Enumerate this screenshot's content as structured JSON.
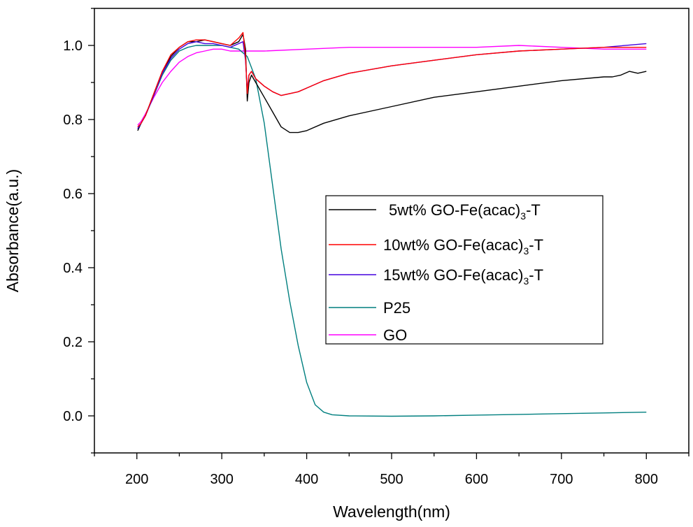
{
  "chart_data": {
    "type": "line",
    "title": "",
    "xlabel": "Wavelength(nm)",
    "ylabel": "Absorbance(a.u.)",
    "xlim": [
      150,
      850
    ],
    "ylim": [
      -0.1,
      1.1
    ],
    "x_ticks": [
      "200",
      "300",
      "400",
      "500",
      "600",
      "700",
      "800"
    ],
    "y_ticks": [
      "0.0",
      "0.2",
      "0.4",
      "0.6",
      "0.8",
      "1.0"
    ],
    "x_tick_values": [
      200,
      300,
      400,
      500,
      600,
      700,
      800
    ],
    "y_tick_values": [
      0.0,
      0.2,
      0.4,
      0.6,
      0.8,
      1.0
    ],
    "grid": false,
    "legend_position": "center-right",
    "series": [
      {
        "name": "5wt% GO-Fe(acac)3-T",
        "legend_main": "5wt% GO-Fe(acac)",
        "legend_sub": "3",
        "legend_tail": "-T",
        "color": "#000000",
        "x": [
          201,
          205,
          210,
          220,
          230,
          240,
          250,
          260,
          270,
          280,
          290,
          300,
          310,
          320,
          325,
          328,
          330,
          332,
          335,
          340,
          350,
          360,
          370,
          380,
          390,
          400,
          420,
          450,
          500,
          550,
          600,
          650,
          700,
          750,
          760,
          770,
          780,
          790,
          800
        ],
        "y": [
          0.77,
          0.79,
          0.81,
          0.87,
          0.93,
          0.97,
          0.995,
          1.01,
          1.01,
          1.015,
          1.01,
          1.005,
          1.0,
          1.01,
          1.03,
          0.99,
          0.85,
          0.9,
          0.92,
          0.9,
          0.86,
          0.82,
          0.78,
          0.765,
          0.765,
          0.77,
          0.79,
          0.81,
          0.835,
          0.86,
          0.875,
          0.89,
          0.905,
          0.915,
          0.915,
          0.92,
          0.93,
          0.925,
          0.93
        ]
      },
      {
        "name": "10wt% GO-Fe(acac)3-T",
        "legend_main": "10wt% GO-Fe(acac)",
        "legend_sub": "3",
        "legend_tail": "-T",
        "color": "#ff0000",
        "x": [
          201,
          205,
          210,
          220,
          230,
          240,
          250,
          260,
          270,
          280,
          290,
          300,
          310,
          320,
          325,
          328,
          330,
          332,
          335,
          340,
          350,
          360,
          370,
          380,
          390,
          400,
          420,
          450,
          500,
          550,
          600,
          650,
          700,
          750,
          800
        ],
        "y": [
          0.78,
          0.79,
          0.81,
          0.87,
          0.93,
          0.975,
          0.995,
          1.01,
          1.015,
          1.015,
          1.01,
          1.005,
          1.0,
          1.02,
          1.035,
          0.97,
          0.87,
          0.92,
          0.93,
          0.91,
          0.89,
          0.875,
          0.865,
          0.87,
          0.875,
          0.885,
          0.905,
          0.925,
          0.945,
          0.96,
          0.975,
          0.985,
          0.99,
          0.995,
          0.995
        ]
      },
      {
        "name": "15wt% GO-Fe(acac)3-T",
        "legend_main": "15wt% GO-Fe(acac)",
        "legend_sub": "3",
        "legend_tail": "-T",
        "color": "#4400dd",
        "x": [
          201,
          205,
          210,
          220,
          230,
          240,
          250,
          260,
          270,
          280,
          290,
          300,
          310,
          320,
          325,
          328,
          330,
          332,
          335,
          340,
          350,
          360,
          370,
          380,
          390,
          400,
          420,
          450,
          500,
          550,
          600,
          650,
          700,
          750,
          800
        ],
        "y": [
          0.775,
          0.79,
          0.81,
          0.865,
          0.925,
          0.965,
          0.99,
          1.005,
          1.01,
          1.005,
          1.005,
          1.0,
          0.995,
          1.005,
          1.01,
          0.96,
          0.88,
          0.92,
          0.93,
          0.91,
          0.89,
          0.875,
          0.865,
          0.87,
          0.875,
          0.885,
          0.905,
          0.925,
          0.945,
          0.96,
          0.975,
          0.985,
          0.99,
          0.995,
          1.005
        ]
      },
      {
        "name": "P25",
        "legend_main": "P25",
        "legend_sub": "",
        "legend_tail": "",
        "color": "#007f7f",
        "x": [
          201,
          205,
          210,
          220,
          230,
          240,
          250,
          260,
          270,
          280,
          290,
          300,
          310,
          320,
          330,
          340,
          350,
          360,
          370,
          380,
          390,
          400,
          410,
          420,
          430,
          450,
          500,
          550,
          600,
          650,
          700,
          750,
          800
        ],
        "y": [
          0.775,
          0.79,
          0.81,
          0.865,
          0.92,
          0.96,
          0.985,
          0.995,
          1.0,
          1.0,
          1.0,
          1.0,
          0.995,
          0.99,
          0.97,
          0.91,
          0.79,
          0.62,
          0.45,
          0.31,
          0.19,
          0.09,
          0.03,
          0.01,
          0.003,
          0.0,
          -0.001,
          0.0,
          0.002,
          0.004,
          0.006,
          0.008,
          0.01
        ]
      },
      {
        "name": "GO",
        "legend_main": "GO",
        "legend_sub": "",
        "legend_tail": "",
        "color": "#ff00ff",
        "x": [
          201,
          205,
          210,
          220,
          230,
          240,
          250,
          260,
          270,
          280,
          290,
          300,
          310,
          320,
          330,
          340,
          350,
          400,
          450,
          500,
          550,
          600,
          650,
          700,
          750,
          800
        ],
        "y": [
          0.785,
          0.795,
          0.815,
          0.86,
          0.9,
          0.93,
          0.955,
          0.97,
          0.98,
          0.985,
          0.99,
          0.99,
          0.985,
          0.985,
          0.985,
          0.985,
          0.985,
          0.99,
          0.995,
          0.995,
          0.995,
          0.995,
          1.0,
          0.995,
          0.99,
          0.99
        ]
      }
    ]
  }
}
